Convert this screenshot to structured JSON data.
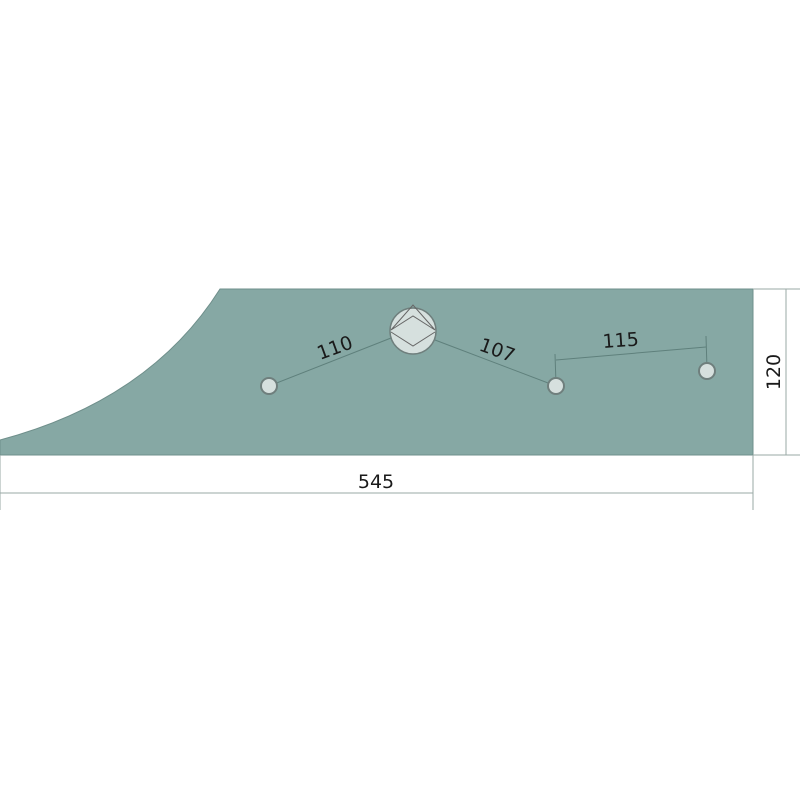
{
  "drawing": {
    "fill_color": "#86a8a4",
    "hole_color": "#d6e0de",
    "dimensions": {
      "length": "545",
      "height": "120",
      "hole_spacing_left": "110",
      "hole_spacing_right": "107",
      "hole_spacing_far": "115"
    }
  }
}
